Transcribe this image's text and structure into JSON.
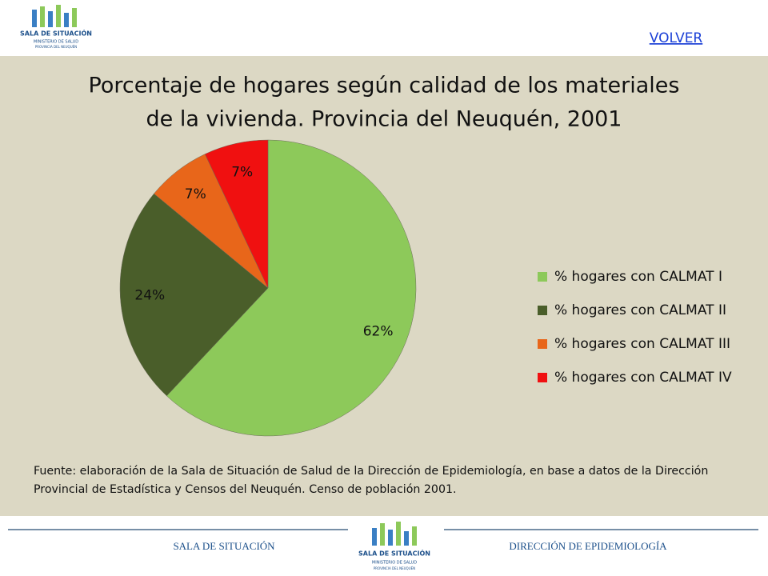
{
  "header": {
    "logo_title": "SALA DE SITUACIÓN",
    "logo_sub": "MINISTERIO DE SALUD",
    "logo_sub2": "PROVINCIA DEL NEUQUÉN",
    "back_link": "VOLVER"
  },
  "chart_data": {
    "type": "pie",
    "title": [
      "Porcentaje  de hogares según calidad de los materiales",
      "de la vivienda. Provincia del Neuquén, 2001"
    ],
    "categories": [
      "% hogares con CALMAT I",
      "% hogares con CALMAT II",
      "% hogares con CALMAT III",
      "% hogares con CALMAT IV"
    ],
    "values": [
      62,
      24,
      7,
      7
    ],
    "value_labels": [
      "62%",
      "24%",
      "7%",
      "7%"
    ],
    "colors": [
      "#8dc95a",
      "#4a5e2a",
      "#e8661a",
      "#f01010"
    ],
    "legend": "right"
  },
  "source": [
    "Fuente: elaboración  de la Sala de Situación de Salud de la Dirección de Epidemiología,  en base a datos de la Dirección",
    "Provincial de Estadística y Censos del Neuquén. Censo de población 2001."
  ],
  "footer": {
    "left": "SALA DE SITUACIÓN",
    "right": "DIRECCIÓN DE EPIDEMIOLOGÍA"
  }
}
